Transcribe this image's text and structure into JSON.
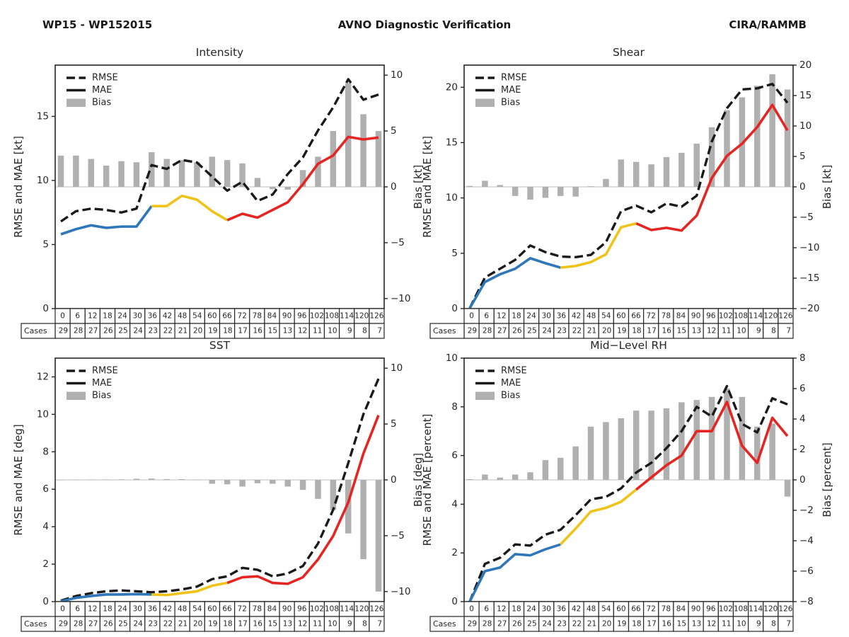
{
  "header": {
    "left": "WP15 - WP152015",
    "center": "AVNO Diagnostic Verification",
    "right": "CIRA/RAMMB"
  },
  "legend": {
    "rmse": "RMSE",
    "mae": "MAE",
    "bias": "Bias"
  },
  "cases_label": "Cases",
  "forecast_hours": [
    0,
    6,
    12,
    18,
    24,
    30,
    36,
    42,
    48,
    54,
    60,
    66,
    72,
    78,
    84,
    90,
    96,
    102,
    108,
    114,
    120,
    126
  ],
  "cases": [
    29,
    28,
    27,
    26,
    25,
    24,
    23,
    22,
    21,
    20,
    19,
    18,
    17,
    16,
    15,
    13,
    12,
    11,
    10,
    9,
    8,
    7
  ],
  "colors": {
    "rmse_line": "#1a1a1a",
    "mae_blue": "#2e77b8",
    "mae_yellow": "#f0c319",
    "mae_red": "#e52522",
    "bias_bar": "#b0b0b0",
    "zero_line": "#c9c9c9",
    "frame": "#262626",
    "text": "#262626"
  },
  "mae_segments": [
    {
      "color_key": "mae_blue",
      "from": 0,
      "to": 6
    },
    {
      "color_key": "mae_yellow",
      "from": 6,
      "to": 11
    },
    {
      "color_key": "mae_red",
      "from": 11,
      "to": 21
    }
  ],
  "chart_data": [
    {
      "type": "line+bar",
      "title": "Intensity",
      "ylabel_left": "RMSE and MAE [kt]",
      "ylabel_right": "Bias [kt]",
      "ylim_left": [
        0,
        19
      ],
      "yticks_left": [
        0,
        5,
        10,
        15
      ],
      "ylim_right": [
        -10.9,
        10.9
      ],
      "yticks_right": [
        -10,
        -5,
        0,
        5,
        10
      ],
      "grid": false,
      "legend_position": "upper-left",
      "rmse": [
        6.8,
        7.6,
        7.8,
        7.7,
        7.5,
        7.8,
        11.2,
        10.9,
        11.6,
        11.4,
        10.3,
        9.2,
        9.9,
        8.4,
        8.9,
        10.5,
        11.8,
        13.9,
        15.7,
        17.9,
        16.3,
        16.7
      ],
      "mae": [
        5.8,
        6.2,
        6.5,
        6.3,
        6.4,
        6.4,
        8.0,
        8.0,
        8.8,
        8.5,
        7.6,
        6.9,
        7.4,
        7.1,
        7.7,
        8.3,
        9.7,
        11.3,
        11.95,
        13.4,
        13.2,
        13.35
      ],
      "bias": [
        2.8,
        2.8,
        2.5,
        1.9,
        2.3,
        2.2,
        3.1,
        2.5,
        2.4,
        2.2,
        2.7,
        2.4,
        2.1,
        0.8,
        -0.2,
        -0.25,
        1.5,
        2.7,
        5.0,
        9.3,
        6.5,
        5.0
      ]
    },
    {
      "type": "line+bar",
      "title": "Shear",
      "ylabel_left": "RMSE and MAE [kt]",
      "ylabel_right": "Bias [kt]",
      "ylim_left": [
        0,
        22
      ],
      "yticks_left": [
        0,
        5,
        10,
        15,
        20
      ],
      "ylim_right": [
        -20,
        20
      ],
      "yticks_right": [
        -20,
        -15,
        -10,
        -5,
        0,
        5,
        10,
        15,
        20
      ],
      "grid": false,
      "legend_position": "upper-left",
      "rmse": [
        0.05,
        2.8,
        3.6,
        4.4,
        5.7,
        5.1,
        4.7,
        4.65,
        4.85,
        6.0,
        8.8,
        9.3,
        8.7,
        9.5,
        9.2,
        10.2,
        15.1,
        18.1,
        19.8,
        19.9,
        20.3,
        18.6
      ],
      "mae": [
        0.05,
        2.4,
        3.1,
        3.6,
        4.55,
        4.1,
        3.7,
        3.85,
        4.2,
        4.9,
        7.35,
        7.7,
        7.1,
        7.3,
        7.05,
        8.4,
        11.8,
        13.8,
        14.9,
        16.4,
        18.4,
        16.1
      ],
      "bias": [
        0.15,
        1.0,
        0.3,
        -1.5,
        -2.1,
        -1.8,
        -1.5,
        -1.6,
        0.1,
        1.3,
        4.5,
        4.1,
        3.7,
        4.9,
        5.6,
        7.1,
        9.8,
        12.6,
        14.7,
        16.6,
        18.5,
        16.0
      ]
    },
    {
      "type": "line+bar",
      "title": "SST",
      "ylabel_left": "RMSE and MAE [deg]",
      "ylabel_right": "Bias [deg]",
      "ylim_left": [
        0,
        13
      ],
      "yticks_left": [
        0,
        2,
        4,
        6,
        8,
        10,
        12
      ],
      "ylim_right": [
        -10.9,
        10.9
      ],
      "yticks_right": [
        -10,
        -5,
        0,
        5,
        10
      ],
      "grid": false,
      "legend_position": "upper-left",
      "rmse": [
        0.05,
        0.3,
        0.45,
        0.55,
        0.6,
        0.55,
        0.5,
        0.55,
        0.65,
        0.8,
        1.2,
        1.35,
        1.8,
        1.7,
        1.35,
        1.5,
        1.9,
        3.1,
        4.9,
        7.4,
        10.0,
        11.9
      ],
      "mae": [
        0.02,
        0.2,
        0.3,
        0.38,
        0.38,
        0.4,
        0.38,
        0.35,
        0.45,
        0.55,
        0.85,
        1.0,
        1.3,
        1.35,
        1.0,
        0.95,
        1.3,
        2.25,
        3.5,
        5.3,
        7.9,
        9.95
      ],
      "bias": [
        0.0,
        0.02,
        0.03,
        0.03,
        0.04,
        0.1,
        0.12,
        0.07,
        0.07,
        0.02,
        -0.35,
        -0.4,
        -0.6,
        -0.3,
        -0.35,
        -0.6,
        -0.9,
        -1.7,
        -2.7,
        -4.8,
        -7.1,
        -10.0
      ]
    },
    {
      "type": "line+bar",
      "title": "Mid-Level RH",
      "ylabel_left": "RMSE and MAE [percent]",
      "ylabel_right": "Bias [percent]",
      "ylim_left": [
        0,
        10
      ],
      "yticks_left": [
        0,
        2,
        4,
        6,
        8,
        10
      ],
      "ylim_right": [
        -8,
        8
      ],
      "yticks_right": [
        -8,
        -6,
        -4,
        -2,
        0,
        2,
        4,
        6,
        8
      ],
      "grid": false,
      "legend_position": "upper-left",
      "rmse": [
        0.0,
        1.55,
        1.8,
        2.35,
        2.3,
        2.75,
        2.95,
        3.55,
        4.2,
        4.3,
        4.65,
        5.3,
        5.7,
        6.3,
        7.0,
        8.0,
        7.6,
        8.85,
        7.3,
        6.95,
        8.35,
        8.1
      ],
      "mae": [
        0.0,
        1.25,
        1.4,
        1.95,
        1.9,
        2.15,
        2.35,
        3.0,
        3.7,
        3.85,
        4.1,
        4.6,
        5.1,
        5.6,
        6.0,
        7.0,
        7.0,
        8.2,
        6.4,
        5.7,
        7.55,
        6.8
      ],
      "bias": [
        0.05,
        0.35,
        0.15,
        0.35,
        0.5,
        1.3,
        1.45,
        2.2,
        3.5,
        3.8,
        4.05,
        4.55,
        4.55,
        4.7,
        5.1,
        5.25,
        5.45,
        6.0,
        5.45,
        3.5,
        3.7,
        -1.1
      ]
    }
  ]
}
